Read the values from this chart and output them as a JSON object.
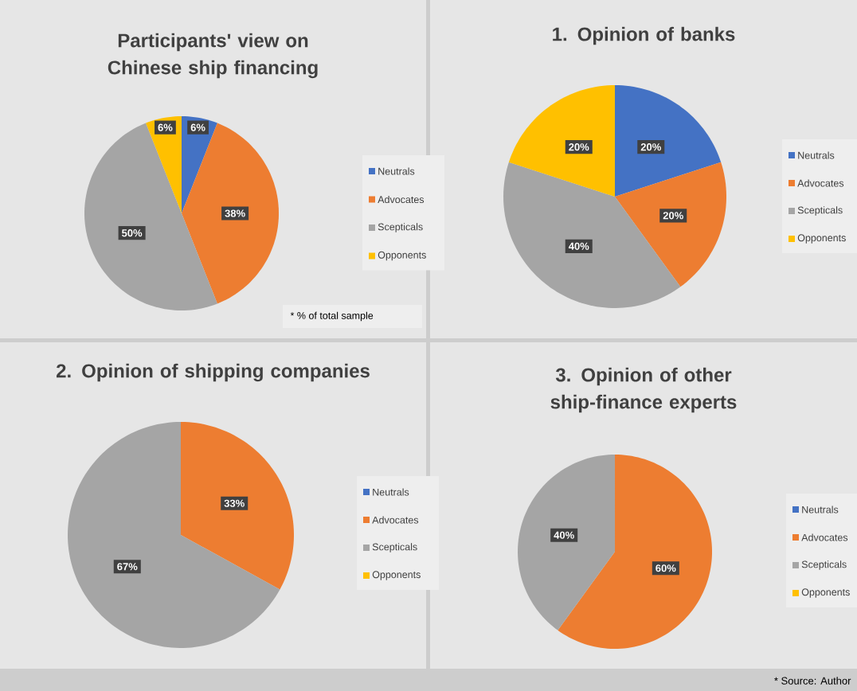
{
  "chart_data": [
    {
      "type": "pie",
      "title": "Participants' view on Chinese ship financing",
      "categories": [
        "Neutrals",
        "Advocates",
        "Scepticals",
        "Opponents"
      ],
      "values": [
        6,
        38,
        50,
        6
      ],
      "value_labels": [
        "6%",
        "38%",
        "50%",
        "6%"
      ],
      "colors": [
        "#4472c4",
        "#ed7d31",
        "#a5a5a5",
        "#ffc000"
      ],
      "legend": "right",
      "annotations": [
        "* % of total sample"
      ]
    },
    {
      "type": "pie",
      "title": "1. Opinion of banks",
      "categories": [
        "Neutrals",
        "Advocates",
        "Scepticals",
        "Opponents"
      ],
      "values": [
        20,
        20,
        40,
        20
      ],
      "value_labels": [
        "20%",
        "20%",
        "40%",
        "20%"
      ],
      "colors": [
        "#4472c4",
        "#ed7d31",
        "#a5a5a5",
        "#ffc000"
      ],
      "legend": "right"
    },
    {
      "type": "pie",
      "title": "2. Opinion of shipping companies",
      "categories": [
        "Neutrals",
        "Advocates",
        "Scepticals",
        "Opponents"
      ],
      "values": [
        0,
        33,
        67,
        0
      ],
      "value_labels": [
        null,
        "33%",
        "67%",
        null
      ],
      "colors": [
        "#4472c4",
        "#ed7d31",
        "#a5a5a5",
        "#ffc000"
      ],
      "legend": "right"
    },
    {
      "type": "pie",
      "title": "3. Opinion of other ship-finance experts",
      "categories": [
        "Neutrals",
        "Advocates",
        "Scepticals",
        "Opponents"
      ],
      "values": [
        0,
        60,
        40,
        0
      ],
      "value_labels": [
        null,
        "60%",
        "40%",
        null
      ],
      "colors": [
        "#4472c4",
        "#ed7d31",
        "#a5a5a5",
        "#ffc000"
      ],
      "legend": "right",
      "annotations": [
        "* Source: Author"
      ]
    }
  ]
}
